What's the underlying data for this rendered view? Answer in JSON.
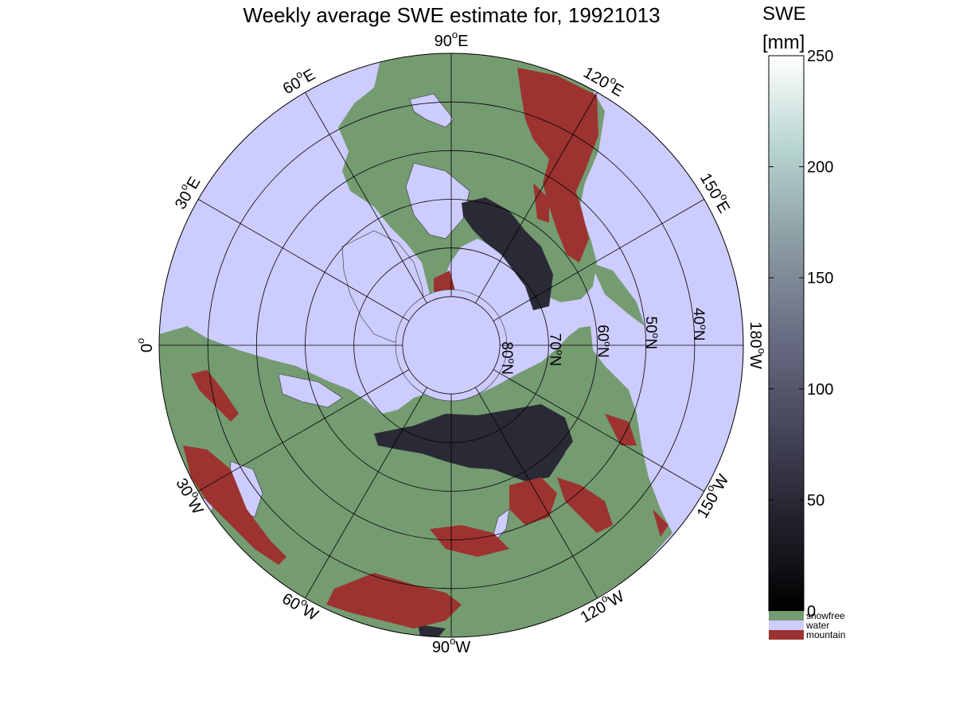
{
  "figure": {
    "title": "Weekly average SWE estimate for, 19921013"
  },
  "map": {
    "projection": "north polar stereographic",
    "meridian_labels": [
      {
        "sup": "o",
        "base": "90",
        "hem": "W",
        "lon": -90
      },
      {
        "sup": "o",
        "base": "120",
        "hem": "W",
        "lon": -120
      },
      {
        "sup": "o",
        "base": "150",
        "hem": "W",
        "lon": -150
      },
      {
        "sup": "o",
        "base": "180",
        "hem": "W",
        "lon": 180
      },
      {
        "sup": "o",
        "base": "150",
        "hem": "E",
        "lon": 150
      },
      {
        "sup": "o",
        "base": "120",
        "hem": "E",
        "lon": 120
      },
      {
        "sup": "o",
        "base": "90",
        "hem": "E",
        "lon": 90
      },
      {
        "sup": "o",
        "base": "60",
        "hem": "E",
        "lon": 60
      },
      {
        "sup": "o",
        "base": "30",
        "hem": "E",
        "lon": 30
      },
      {
        "sup": "o",
        "base": "0",
        "hem": "",
        "lon": 0
      },
      {
        "sup": "o",
        "base": "30",
        "hem": "W",
        "lon": -30
      },
      {
        "sup": "o",
        "base": "60",
        "hem": "W",
        "lon": -60
      }
    ],
    "parallel_labels": [
      {
        "base": "80",
        "sup": "o",
        "hem": "N",
        "lat": 80
      },
      {
        "base": "70",
        "sup": "o",
        "hem": "N",
        "lat": 70
      },
      {
        "base": "60",
        "sup": "o",
        "hem": "N",
        "lat": 60
      },
      {
        "base": "50",
        "sup": "o",
        "hem": "N",
        "lat": 50
      },
      {
        "base": "40",
        "sup": "o",
        "hem": "N",
        "lat": 40
      }
    ],
    "colors": {
      "water": "#ccccff",
      "snowfree": "#759b71",
      "mountain": "#9c3330",
      "swe_dark": "#2a2a36",
      "grid": "#000000"
    }
  },
  "colorbar": {
    "title": "SWE",
    "unit": "[mm]",
    "range": [
      0,
      250
    ],
    "ticks": [
      "0",
      "50",
      "100",
      "150",
      "200",
      "250"
    ],
    "gradient": [
      "#000000",
      "#23232e",
      "#46465c",
      "#6a6e84",
      "#8d9ea5",
      "#b6d3cf",
      "#ffffff"
    ],
    "legend": [
      {
        "label": "snowfree",
        "color": "#759b71"
      },
      {
        "label": "water",
        "color": "#ccccff"
      },
      {
        "label": "mountain",
        "color": "#9c3330"
      }
    ]
  }
}
